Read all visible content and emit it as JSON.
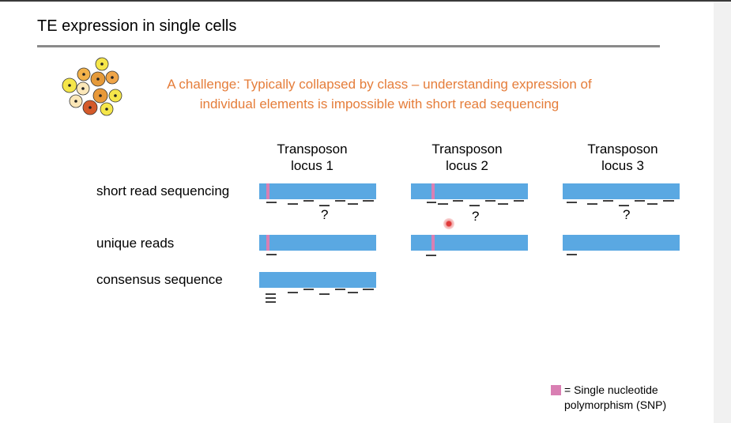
{
  "title": "TE expression in single cells",
  "challenge": {
    "line1": "A challenge: Typically collapsed by class – understanding expression of",
    "line2": "individual elements is impossible with short read sequencing"
  },
  "columns": [
    {
      "line1": "Transposon",
      "line2": "locus 1"
    },
    {
      "line1": "Transposon",
      "line2": "locus 2"
    },
    {
      "line1": "Transposon",
      "line2": "locus 3"
    }
  ],
  "rows": {
    "short_read": "short read sequencing",
    "unique": "unique reads",
    "consensus": "consensus sequence"
  },
  "question_mark": "?",
  "legend": {
    "text": "= Single nucleotide polymorphism (SNP)",
    "snp_color": "#d97fb3"
  },
  "colors": {
    "sequence_bar": "#5aa8e2",
    "challenge_text": "#e57d3a"
  }
}
